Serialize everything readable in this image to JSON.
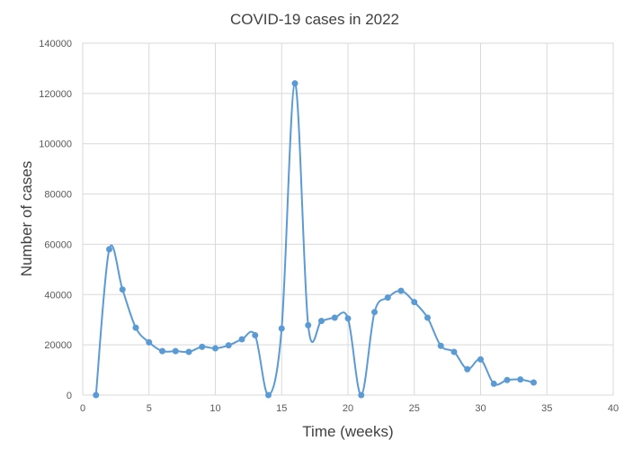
{
  "chart_data": {
    "type": "scatter",
    "title": "COVID-19 cases in 2022",
    "xlabel": "Time  (weeks)",
    "ylabel": "Number of cases",
    "xlim": [
      0,
      40
    ],
    "ylim": [
      0,
      140000
    ],
    "x_ticks": [
      0,
      5,
      10,
      15,
      20,
      25,
      30,
      35,
      40
    ],
    "y_ticks": [
      0,
      20000,
      40000,
      60000,
      80000,
      100000,
      120000,
      140000
    ],
    "grid": true,
    "legend": "none",
    "smoothed_line": true,
    "series_color": "#5b9bd5",
    "series": [
      {
        "x": [
          1,
          2,
          3,
          4,
          5,
          6,
          7,
          8,
          9,
          10,
          11,
          12,
          13,
          14,
          15,
          16,
          17,
          18,
          19,
          20,
          21,
          22,
          23,
          24,
          25,
          26,
          27,
          28,
          29,
          30,
          31,
          32,
          33,
          34
        ],
        "y": [
          0,
          58000,
          42000,
          26800,
          21000,
          17500,
          17500,
          17200,
          19200,
          18600,
          19800,
          22200,
          23800,
          0,
          26500,
          124000,
          27800,
          29500,
          30800,
          30500,
          0,
          33000,
          38800,
          41500,
          37000,
          30800,
          19600,
          17200,
          10300,
          14200,
          4500,
          6000,
          6200,
          5000
        ]
      }
    ]
  }
}
